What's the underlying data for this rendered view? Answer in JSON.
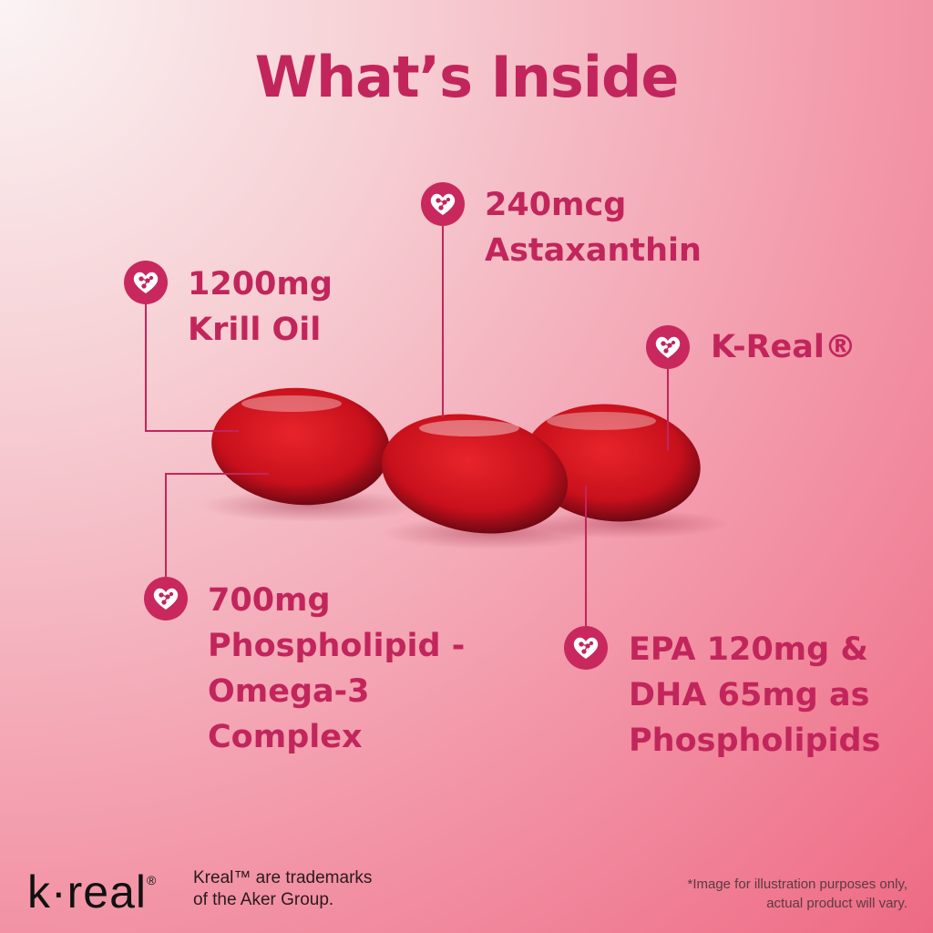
{
  "title": "What’s Inside",
  "colors": {
    "accent": "#c2255c",
    "capsule": "#d4141f",
    "background_end": "#ee6a84"
  },
  "callouts": [
    {
      "icon": "heart-molecule-icon",
      "lines": [
        "1200mg",
        "Krill Oil"
      ]
    },
    {
      "icon": "heart-molecule-icon",
      "lines": [
        "240mcg",
        "Astaxanthin"
      ]
    },
    {
      "icon": "heart-molecule-icon",
      "lines": [
        "K-Real®"
      ]
    },
    {
      "icon": "heart-molecule-icon",
      "lines": [
        "700mg",
        "Phospholipid -",
        "Omega-3",
        "Complex"
      ]
    },
    {
      "icon": "heart-molecule-icon",
      "lines": [
        "EPA 120mg &",
        "DHA 65mg as",
        "Phospholipids"
      ]
    }
  ],
  "footer": {
    "logo": "k·real",
    "logo_mark": "®",
    "trademark_lines": [
      "Kreal™ are trademarks",
      "of the Aker Group."
    ],
    "disclaimer_lines": [
      "*Image for illustration purposes only,",
      "actual product will vary."
    ]
  }
}
